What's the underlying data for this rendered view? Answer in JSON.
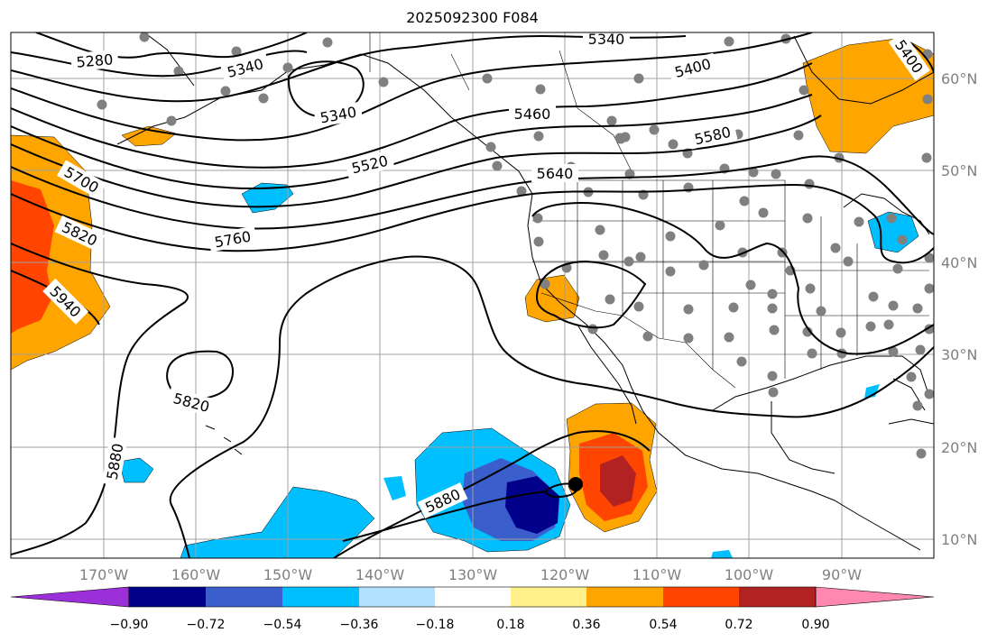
{
  "title": "2025092300 F084",
  "lon_ticks": [
    "170°W",
    "160°W",
    "150°W",
    "140°W",
    "130°W",
    "120°W",
    "110°W",
    "100°W",
    "90°W"
  ],
  "lat_ticks": [
    "60°N",
    "50°N",
    "40°N",
    "30°N",
    "20°N",
    "10°N"
  ],
  "colorbar": {
    "colors": [
      "#9b30d9",
      "#00008b",
      "#3a5fcd",
      "#00bfff",
      "#b0e2ff",
      "#ffffff",
      "#fff08a",
      "#ffa500",
      "#ff4500",
      "#b22222",
      "#ff88b0"
    ],
    "tick_labels": [
      "−0.90",
      "−0.72",
      "−0.54",
      "−0.36",
      "−0.18",
      "0.18",
      "0.36",
      "0.54",
      "0.72",
      "0.90"
    ]
  },
  "contour_labels": [
    "5280",
    "5340",
    "5340",
    "5340",
    "5400",
    "5400",
    "5460",
    "5520",
    "5580",
    "5640",
    "5700",
    "5760",
    "5820",
    "5820",
    "5940",
    "5880",
    "5880"
  ],
  "colors": {
    "gridline": "#a0a0a0",
    "station": "#808080",
    "contour": "#000000",
    "frame": "#000000"
  },
  "map_extent": {
    "lon_min": -180,
    "lon_max": -80,
    "lat_min": 8,
    "lat_max": 65
  }
}
